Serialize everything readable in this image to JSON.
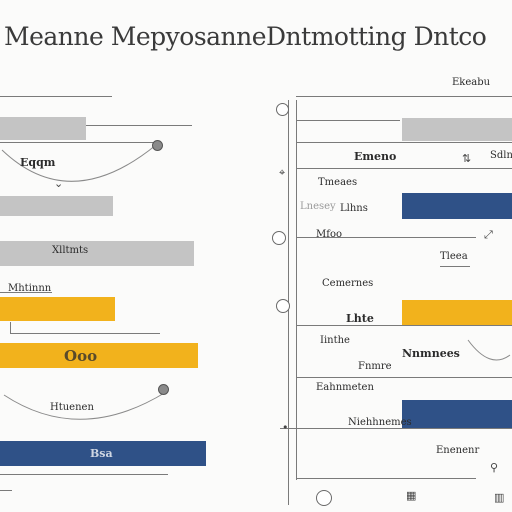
{
  "left_panel": {
    "title": "Meanne Mepyosanne",
    "labels": {
      "row_1": "Eqqm",
      "row_2": "Xlltmts",
      "row_3": "Mhtinnn",
      "yellow_bar_label": "Ooo",
      "row_4": "Htuenen",
      "navy_bar_label": "Bsa"
    }
  },
  "right_panel": {
    "title": "Dntmotting Dntco",
    "labels": {
      "header": "Ekeabu",
      "row_1": "Emeno",
      "row_2a": "Sdlnas",
      "row_2b": "Tmeaes",
      "row_3a": "Lnesey",
      "row_3b": "Llhns",
      "row_4": "Mfoo",
      "row_5": "Tleea",
      "row_6": "Cemernes",
      "row_7a": "Lhte",
      "row_7b": "Iinthe",
      "row_7c": "Nnmnees",
      "row_8a": "Fnmre",
      "row_8b": "Eahnmeten",
      "row_9": "Niehhnemes",
      "row_10": "Enenenr"
    }
  },
  "colors": {
    "gray_bar": "#c4c4c4",
    "yellow_bar": "#f2b21c",
    "navy_bar": "#2f5187",
    "background": "#fbfbfa"
  },
  "icons": [
    "scroll-knob-icon",
    "sort-icon",
    "filter-icon",
    "expand-icon",
    "search-icon",
    "info-icon",
    "target-icon"
  ]
}
